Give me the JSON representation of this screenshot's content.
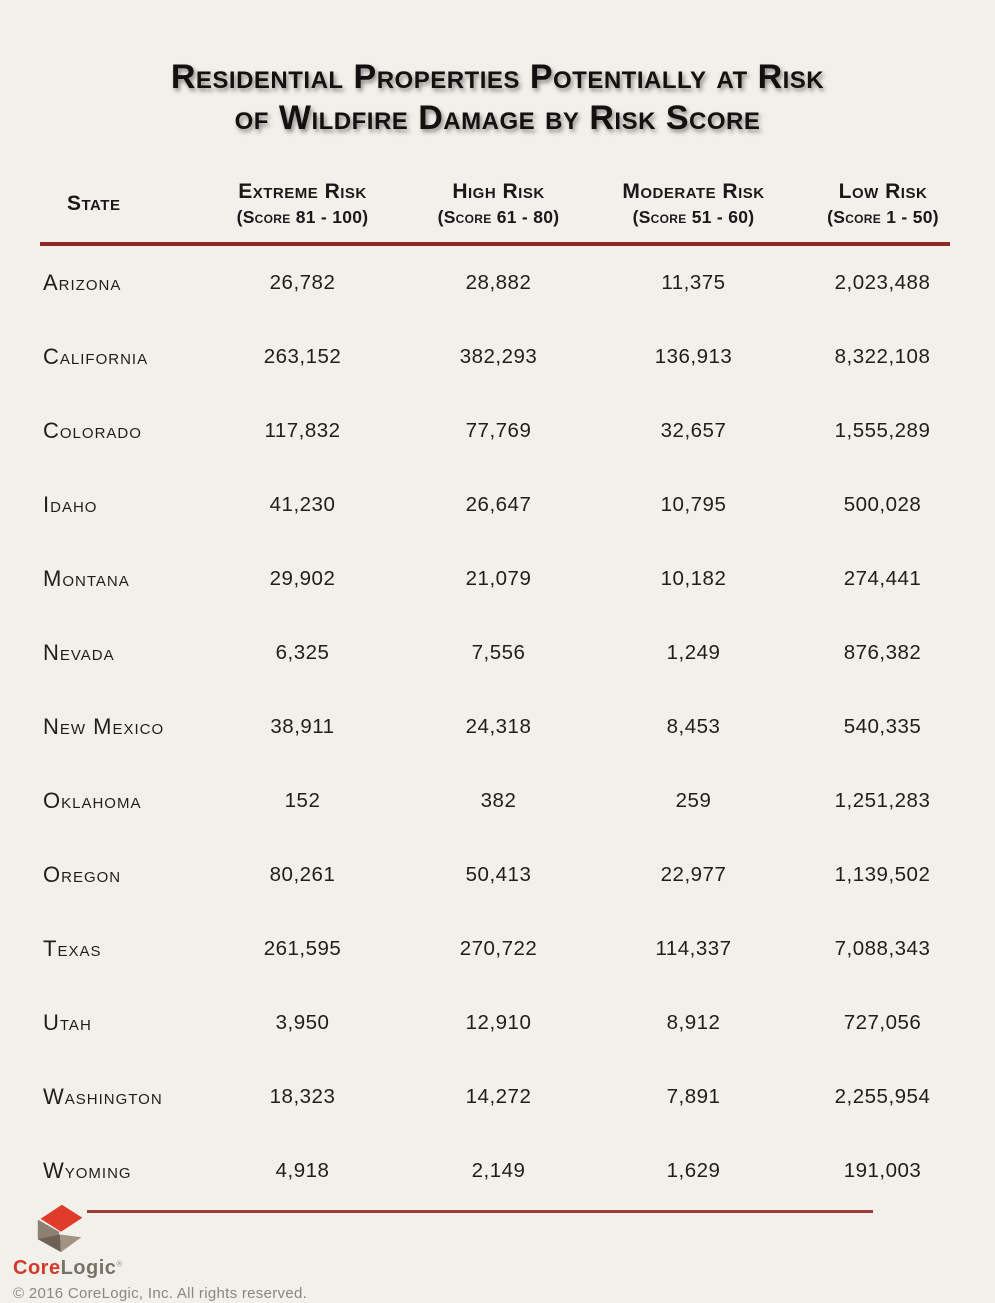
{
  "title": {
    "line1": "Residential Properties Potentially at Risk",
    "line2": "of Wildfire Damage by Risk Score"
  },
  "table": {
    "columns": [
      {
        "label": "State",
        "sub": ""
      },
      {
        "label": "Extreme Risk",
        "sub": "(Score 81 - 100)"
      },
      {
        "label": "High Risk",
        "sub": "(Score 61 - 80)"
      },
      {
        "label": "Moderate Risk",
        "sub": "(Score 51 - 60)"
      },
      {
        "label": "Low Risk",
        "sub": "(Score 1 - 50)"
      }
    ],
    "rows": [
      {
        "state": "Arizona",
        "values": [
          "26,782",
          "28,882",
          "11,375",
          "2,023,488"
        ]
      },
      {
        "state": "California",
        "values": [
          "263,152",
          "382,293",
          "136,913",
          "8,322,108"
        ]
      },
      {
        "state": "Colorado",
        "values": [
          "117,832",
          "77,769",
          "32,657",
          "1,555,289"
        ]
      },
      {
        "state": "Idaho",
        "values": [
          "41,230",
          "26,647",
          "10,795",
          "500,028"
        ]
      },
      {
        "state": "Montana",
        "values": [
          "29,902",
          "21,079",
          "10,182",
          "274,441"
        ]
      },
      {
        "state": "Nevada",
        "values": [
          "6,325",
          "7,556",
          "1,249",
          "876,382"
        ]
      },
      {
        "state": "New Mexico",
        "values": [
          "38,911",
          "24,318",
          "8,453",
          "540,335"
        ]
      },
      {
        "state": "Oklahoma",
        "values": [
          "152",
          "382",
          "259",
          "1,251,283"
        ]
      },
      {
        "state": "Oregon",
        "values": [
          "80,261",
          "50,413",
          "22,977",
          "1,139,502"
        ]
      },
      {
        "state": "Texas",
        "values": [
          "261,595",
          "270,722",
          "114,337",
          "7,088,343"
        ]
      },
      {
        "state": "Utah",
        "values": [
          "3,950",
          "12,910",
          "8,912",
          "727,056"
        ]
      },
      {
        "state": "Washington",
        "values": [
          "18,323",
          "14,272",
          "7,891",
          "2,255,954"
        ]
      },
      {
        "state": "Wyoming",
        "values": [
          "4,918",
          "2,149",
          "1,629",
          "191,003"
        ]
      }
    ]
  },
  "chart_data": {
    "type": "table",
    "title": "Residential Properties Potentially at Risk of Wildfire Damage by Risk Score",
    "categories": [
      "Arizona",
      "California",
      "Colorado",
      "Idaho",
      "Montana",
      "Nevada",
      "New Mexico",
      "Oklahoma",
      "Oregon",
      "Texas",
      "Utah",
      "Washington",
      "Wyoming"
    ],
    "series": [
      {
        "name": "Extreme Risk (Score 81 - 100)",
        "values": [
          26782,
          263152,
          117832,
          41230,
          29902,
          6325,
          38911,
          152,
          80261,
          261595,
          3950,
          18323,
          4918
        ]
      },
      {
        "name": "High Risk (Score 61 - 80)",
        "values": [
          28882,
          382293,
          77769,
          26647,
          21079,
          7556,
          24318,
          382,
          50413,
          270722,
          12910,
          14272,
          2149
        ]
      },
      {
        "name": "Moderate Risk (Score 51 - 60)",
        "values": [
          11375,
          136913,
          32657,
          10795,
          10182,
          1249,
          8453,
          259,
          22977,
          114337,
          8912,
          7891,
          1629
        ]
      },
      {
        "name": "Low Risk (Score 1 - 50)",
        "values": [
          2023488,
          8322108,
          1555289,
          500028,
          274441,
          876382,
          540335,
          1251283,
          1139502,
          7088343,
          727056,
          2255954,
          191003
        ]
      }
    ]
  },
  "footer": {
    "brand": {
      "part1": "Core",
      "part2": "Logic",
      "trademark": "®"
    },
    "copyright": "© 2016 CoreLogic, Inc. All rights reserved."
  },
  "colors": {
    "background": "#f2f0ea",
    "rule_top": "#8d2a26",
    "rule_bottom": "#9d3b36",
    "text": "#211d1c",
    "logo_red": "#e13b2c",
    "logo_taupe_medium": "#8d8174",
    "logo_taupe_dark": "#6d6154",
    "logo_taupe_light": "#a29484",
    "brand_red": "#d4392c",
    "brand_gray": "#7b7267",
    "copyright_gray": "#8c867b"
  }
}
